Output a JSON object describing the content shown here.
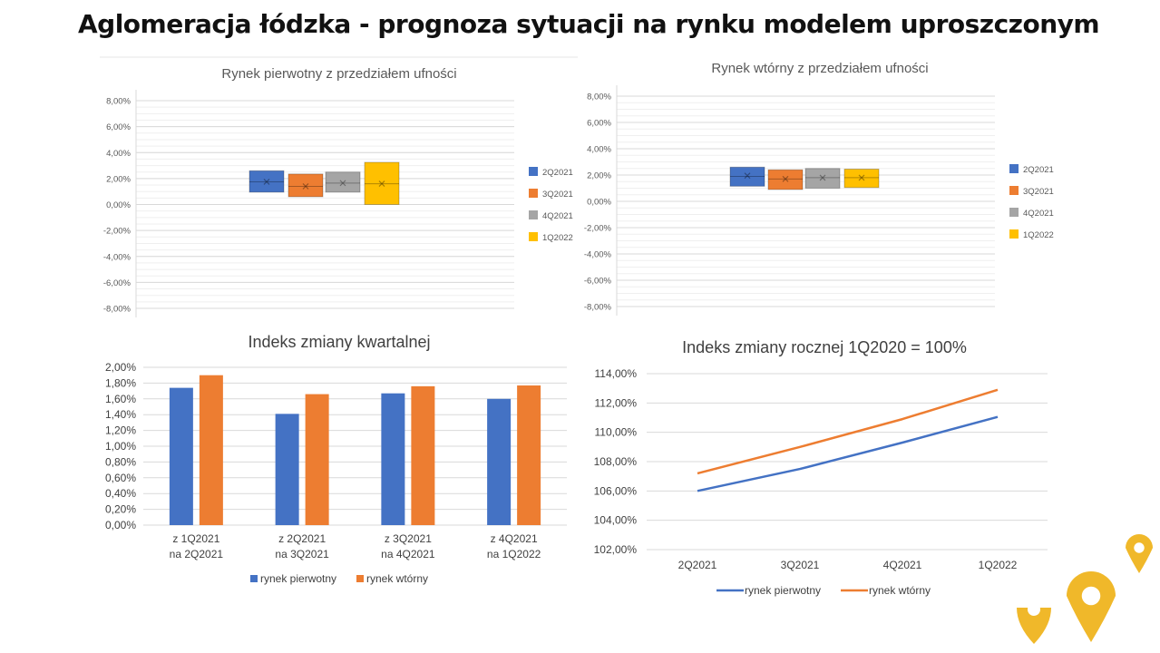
{
  "slide": {
    "title": "Aglomeracja łódzka - prognoza sytuacji na rynku modelem uproszczonym"
  },
  "colors": {
    "blue": "#4472C4",
    "orange": "#ED7D31",
    "gray": "#A5A5A5",
    "yellow": "#FFC000",
    "pin": "#F0B82A"
  },
  "chart_data": [
    {
      "type": "box",
      "title": "Rynek pierwotny z przedziałem ufności",
      "ylim": [
        -0.08,
        0.08
      ],
      "yticks": [
        "8,00%",
        "6,00%",
        "4,00%",
        "2,00%",
        "0,00%",
        "-2,00%",
        "-4,00%",
        "-6,00%",
        "-8,00%"
      ],
      "grid": true,
      "legend": "right",
      "series": [
        {
          "name": "2Q2021",
          "color": "#4472C4",
          "low": 0.0095,
          "high": 0.026,
          "median": 0.0175,
          "mean": 0.0175
        },
        {
          "name": "3Q2021",
          "color": "#ED7D31",
          "low": 0.006,
          "high": 0.0235,
          "median": 0.014,
          "mean": 0.014
        },
        {
          "name": "4Q2021",
          "color": "#A5A5A5",
          "low": 0.0095,
          "high": 0.025,
          "median": 0.0165,
          "mean": 0.0165
        },
        {
          "name": "1Q2022",
          "color": "#FFC000",
          "low": 0.0,
          "high": 0.0325,
          "median": 0.016,
          "mean": 0.016
        }
      ]
    },
    {
      "type": "box",
      "title": "Rynek wtórny z przedziałem ufności",
      "ylim": [
        -0.08,
        0.08
      ],
      "yticks": [
        "8,00%",
        "6,00%",
        "4,00%",
        "2,00%",
        "0,00%",
        "-2,00%",
        "-4,00%",
        "-6,00%",
        "-8,00%"
      ],
      "grid": true,
      "legend": "right",
      "series": [
        {
          "name": "2Q2021",
          "color": "#4472C4",
          "low": 0.0115,
          "high": 0.026,
          "median": 0.019,
          "mean": 0.0195
        },
        {
          "name": "3Q2021",
          "color": "#ED7D31",
          "low": 0.009,
          "high": 0.024,
          "median": 0.017,
          "mean": 0.017
        },
        {
          "name": "4Q2021",
          "color": "#A5A5A5",
          "low": 0.01,
          "high": 0.025,
          "median": 0.018,
          "mean": 0.018
        },
        {
          "name": "1Q2022",
          "color": "#FFC000",
          "low": 0.0105,
          "high": 0.0245,
          "median": 0.018,
          "mean": 0.018
        }
      ]
    },
    {
      "type": "bar",
      "title": "Indeks zmiany kwartalnej",
      "categories": [
        [
          "z 1Q2021",
          "na 2Q2021"
        ],
        [
          "z 2Q2021",
          "na 3Q2021"
        ],
        [
          "z 3Q2021",
          "na 4Q2021"
        ],
        [
          "z 4Q2021",
          "na 1Q2022"
        ]
      ],
      "ylim": [
        0,
        0.02
      ],
      "yticks": [
        "2,00%",
        "1,80%",
        "1,60%",
        "1,40%",
        "1,20%",
        "1,00%",
        "0,80%",
        "0,60%",
        "0,40%",
        "0,20%",
        "0,00%"
      ],
      "grid": true,
      "legend": "bottom",
      "series": [
        {
          "name": "rynek pierwotny",
          "color": "#4472C4",
          "values": [
            0.0174,
            0.0141,
            0.0167,
            0.016
          ]
        },
        {
          "name": "rynek wtórny",
          "color": "#ED7D31",
          "values": [
            0.019,
            0.0166,
            0.0176,
            0.0177
          ]
        }
      ]
    },
    {
      "type": "line",
      "title": "Indeks zmiany rocznej 1Q2020 = 100%",
      "categories": [
        "2Q2021",
        "3Q2021",
        "4Q2021",
        "1Q2022"
      ],
      "ylim": [
        1.02,
        1.14
      ],
      "yticks": [
        "114,00%",
        "112,00%",
        "110,00%",
        "108,00%",
        "106,00%",
        "104,00%",
        "102,00%"
      ],
      "grid": true,
      "legend": "bottom",
      "series": [
        {
          "name": "rynek pierwotny",
          "color": "#4472C4",
          "values": [
            1.06,
            1.075,
            1.093,
            1.1105
          ]
        },
        {
          "name": "rynek wtórny",
          "color": "#ED7D31",
          "values": [
            1.072,
            1.09,
            1.109,
            1.129
          ]
        }
      ]
    }
  ]
}
